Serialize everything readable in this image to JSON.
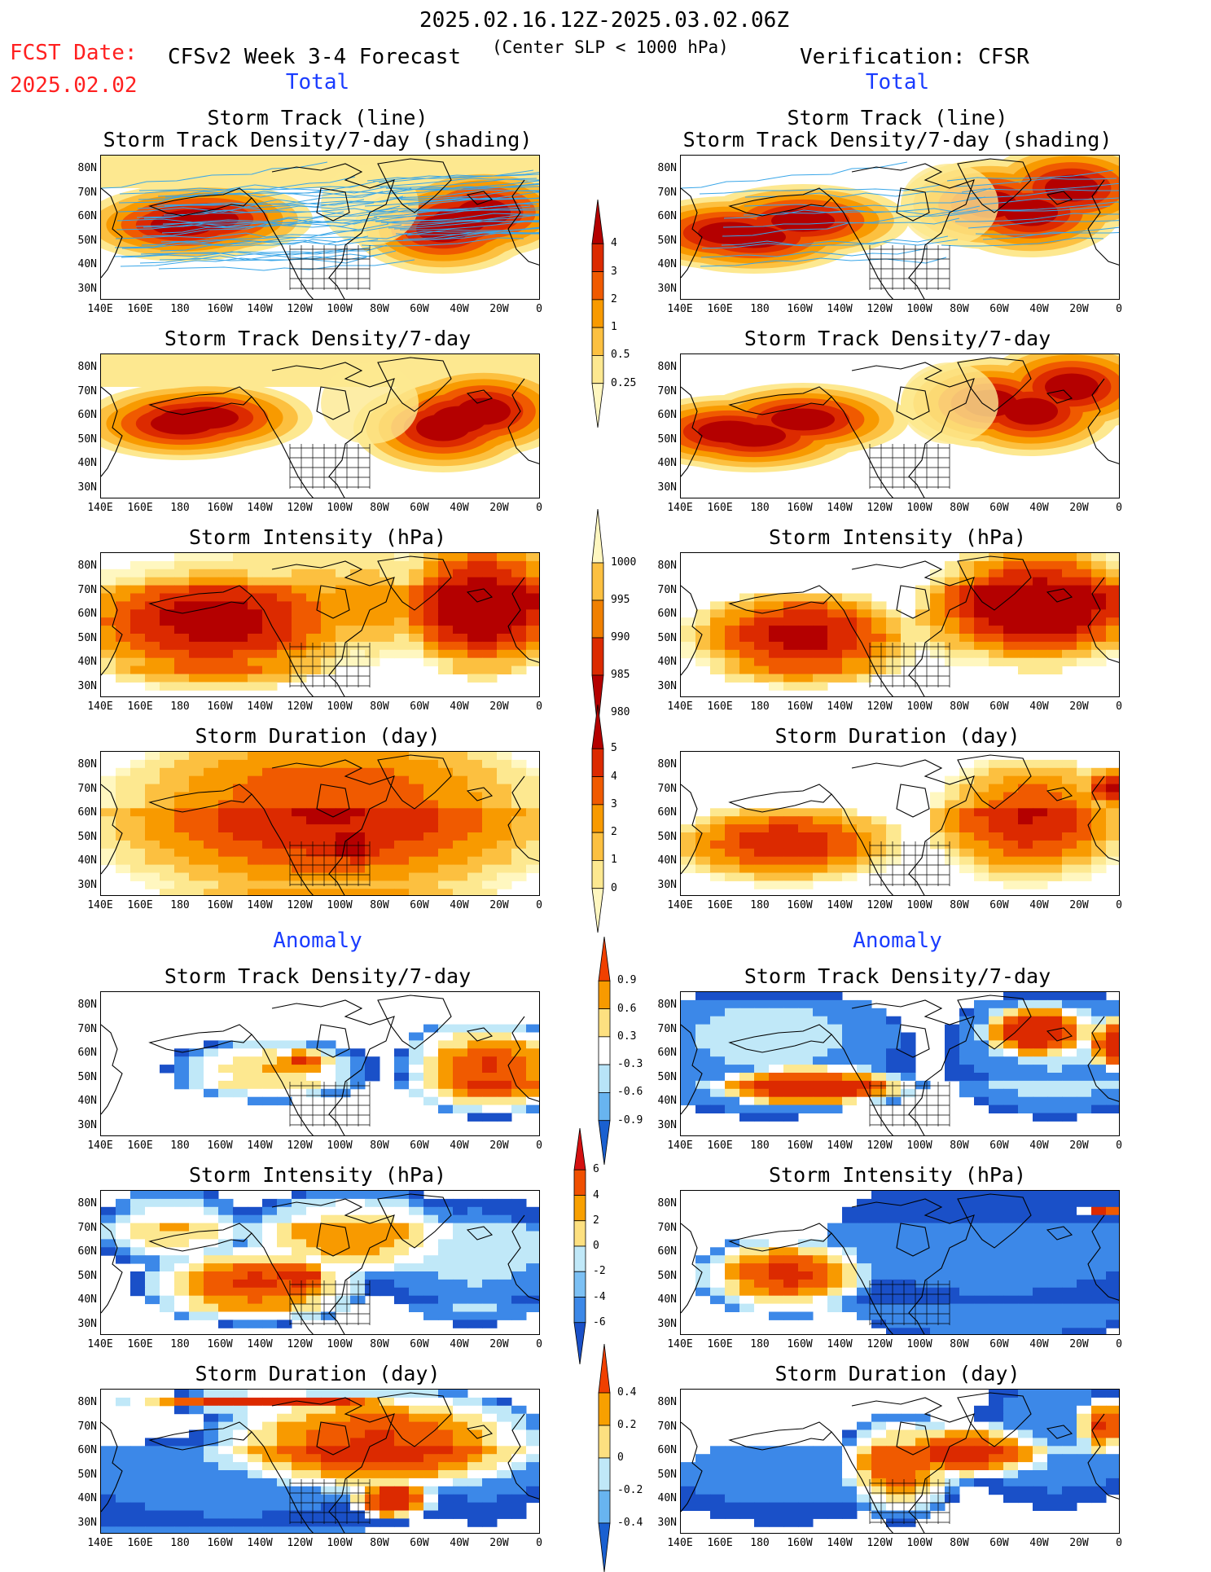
{
  "header": {
    "date_range": "2025.02.16.12Z-2025.03.02.06Z",
    "fcst_label": "FCST Date:",
    "fcst_date": "2025.02.02",
    "model_title": "CFSv2 Week 3-4 Forecast",
    "subtitle": "(Center SLP < 1000 hPa)",
    "verification": "Verification: CFSR",
    "total_label": "Total",
    "anomaly_label": "Anomaly"
  },
  "titles": {
    "track_line": "Storm Track (line)",
    "track_density_shading": "Storm Track Density/7-day (shading)",
    "track_density": "Storm Track Density/7-day",
    "intensity": "Storm Intensity (hPa)",
    "duration": "Storm Duration (day)"
  },
  "axes": {
    "lat_labels": [
      "80N",
      "70N",
      "60N",
      "50N",
      "40N",
      "30N"
    ],
    "lon_labels": [
      "140E",
      "160E",
      "180",
      "160W",
      "140W",
      "120W",
      "100W",
      "80W",
      "60W",
      "40W",
      "20W",
      "0"
    ]
  },
  "colorbars": [
    {
      "id": "density",
      "labels": [
        "4",
        "3",
        "2",
        "1",
        "0.5",
        "0.25"
      ],
      "colors": [
        "#b40000",
        "#dc2a00",
        "#f05a00",
        "#f89a00",
        "#fcc040",
        "#fde890",
        "#fff7c0"
      ]
    },
    {
      "id": "intensity",
      "labels": [
        "1000",
        "995",
        "990",
        "985",
        "980"
      ],
      "colors": [
        "#fff7c0",
        "#fcc040",
        "#f08000",
        "#dc2a00",
        "#b40000"
      ]
    },
    {
      "id": "duration",
      "labels": [
        "5",
        "4",
        "3",
        "2",
        "1",
        "0"
      ],
      "colors": [
        "#b40000",
        "#dc2a00",
        "#f05a00",
        "#f89a00",
        "#fcc040",
        "#fde890",
        "#fff7c0"
      ]
    },
    {
      "id": "anom_density",
      "labels": [
        "0.9",
        "0.6",
        "0.3",
        "-0.3",
        "-0.6",
        "-0.9"
      ],
      "colors": [
        "#f04000",
        "#f89a00",
        "#fde080",
        "#ffffff",
        "#b8e4f8",
        "#68b4f0",
        "#1a60d0"
      ]
    },
    {
      "id": "anom_intensity",
      "labels": [
        "6",
        "4",
        "2",
        "0",
        "-2",
        "-4",
        "-6"
      ],
      "colors": [
        "#d41010",
        "#f05000",
        "#f8a000",
        "#fde080",
        "#c0e8f8",
        "#7cc0f4",
        "#3c88e8",
        "#1a50c8"
      ]
    },
    {
      "id": "anom_duration",
      "labels": [
        "0.4",
        "0.2",
        "0",
        "-0.2",
        "-0.4"
      ],
      "colors": [
        "#f04000",
        "#f8a000",
        "#fde080",
        "#c0e8f8",
        "#68b4f0",
        "#1a60d0"
      ]
    }
  ],
  "palette": {
    "dark_red": "#b40000",
    "red": "#dc2a00",
    "orange": "#f05a00",
    "light_orange": "#f89a00",
    "yellow": "#fcc040",
    "pale_yellow": "#fde890",
    "cream": "#fff7c0",
    "light_blue": "#c0e8f8",
    "blue": "#3c88e8",
    "dark_blue": "#1a50c8",
    "track_line": "#39a6e8"
  }
}
